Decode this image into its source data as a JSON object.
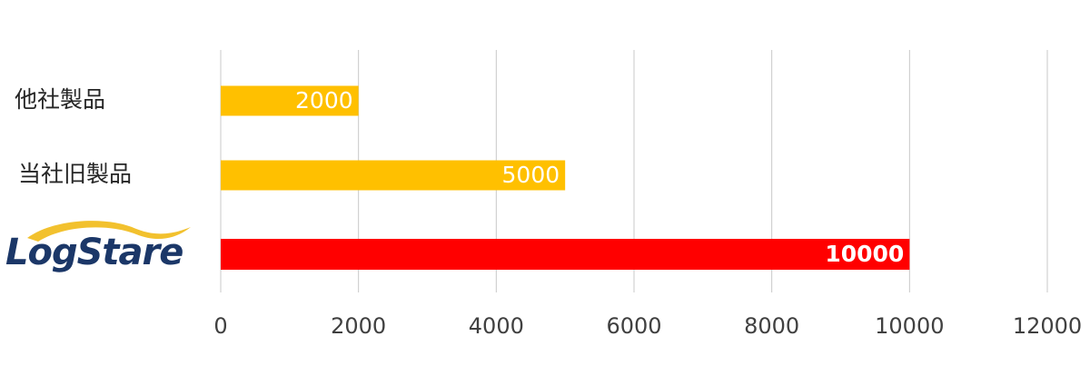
{
  "chart_data": {
    "type": "barh",
    "categories": [
      "他社製品",
      "当社旧製品",
      "LogStare"
    ],
    "values": [
      2000,
      5000,
      10000
    ],
    "colors": [
      "#ffc000",
      "#ffc000",
      "#ff0000"
    ],
    "xlim": [
      0,
      12000
    ],
    "xticks": [
      0,
      2000,
      4000,
      6000,
      8000,
      10000,
      12000
    ],
    "grid": true
  }
}
